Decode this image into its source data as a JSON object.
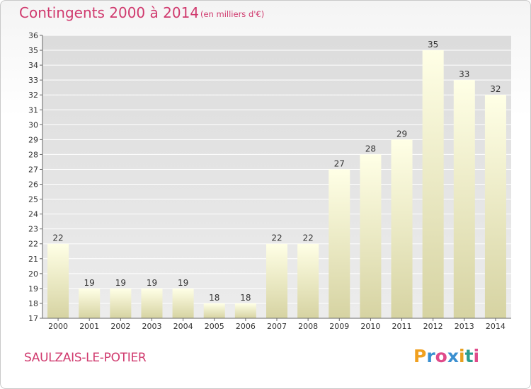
{
  "title": "Contingents 2000 à 2014",
  "subtitle": "(en milliers d'€)",
  "commune": "SAULZAIS-LE-POTIER",
  "logo": {
    "letters": [
      "P",
      "r",
      "o",
      "x",
      "i",
      "t",
      "i"
    ],
    "colors": [
      "#f0a020",
      "#3a8fd0",
      "#e04a8a",
      "#3a8fd0",
      "#e8a020",
      "#2a9d8f",
      "#e04a8a"
    ]
  },
  "colors": {
    "accent": "#d03a6e",
    "bar_top": "#ffffe6",
    "bar_bottom": "#d6d3a2",
    "grid": "#ffffff"
  },
  "chart_data": {
    "type": "bar",
    "categories": [
      "2000",
      "2001",
      "2002",
      "2003",
      "2004",
      "2005",
      "2006",
      "2007",
      "2008",
      "2009",
      "2010",
      "2011",
      "2012",
      "2013",
      "2014"
    ],
    "values": [
      22,
      19,
      19,
      19,
      19,
      18,
      18,
      22,
      22,
      27,
      28,
      29,
      35,
      33,
      32
    ],
    "ylim": [
      17,
      36
    ],
    "yticks": [
      17,
      18,
      19,
      20,
      21,
      22,
      23,
      24,
      25,
      26,
      27,
      28,
      29,
      30,
      31,
      32,
      33,
      34,
      35,
      36
    ],
    "grid": true,
    "data_labels": true
  }
}
